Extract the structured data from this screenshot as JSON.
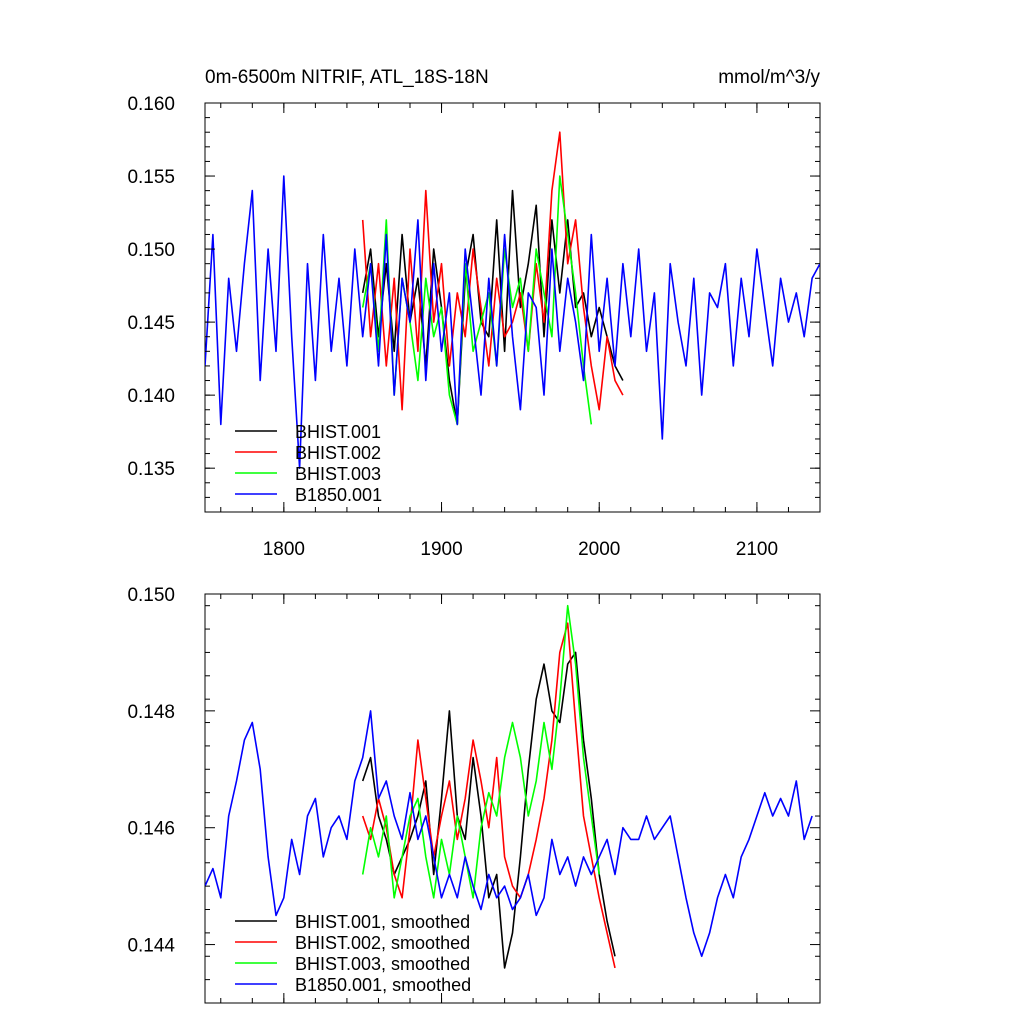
{
  "chart_data": [
    {
      "type": "line",
      "title_left": "0m-6500m NITRIF, ATL_18S-18N",
      "title_right": "mmol/m^3/y",
      "xlabel": "",
      "ylabel": "",
      "xlim": [
        1750,
        2140
      ],
      "ylim": [
        0.132,
        0.16
      ],
      "xticks": [
        1800,
        1900,
        2000,
        2100
      ],
      "xtick_labels": [
        "1800",
        "1900",
        "2000",
        "2100"
      ],
      "yticks": [
        0.135,
        0.14,
        0.145,
        0.15,
        0.155,
        0.16
      ],
      "ytick_labels": [
        "0.135",
        "0.140",
        "0.145",
        "0.150",
        "0.155",
        "0.160"
      ],
      "legend_position": "bottom-left",
      "series": [
        {
          "name": "BHIST.001",
          "color": "#000000",
          "x": [
            1850,
            1855,
            1860,
            1865,
            1870,
            1875,
            1880,
            1885,
            1890,
            1895,
            1900,
            1905,
            1910,
            1915,
            1920,
            1925,
            1930,
            1935,
            1940,
            1945,
            1950,
            1955,
            1960,
            1965,
            1970,
            1975,
            1980,
            1985,
            1990,
            1995,
            2000,
            2005,
            2010,
            2015
          ],
          "y": [
            0.147,
            0.15,
            0.144,
            0.149,
            0.143,
            0.151,
            0.145,
            0.148,
            0.142,
            0.15,
            0.146,
            0.141,
            0.138,
            0.148,
            0.151,
            0.145,
            0.144,
            0.152,
            0.143,
            0.154,
            0.146,
            0.149,
            0.153,
            0.144,
            0.152,
            0.147,
            0.152,
            0.146,
            0.147,
            0.144,
            0.146,
            0.144,
            0.142,
            0.141
          ]
        },
        {
          "name": "BHIST.002",
          "color": "#ff0000",
          "x": [
            1850,
            1855,
            1860,
            1865,
            1870,
            1875,
            1880,
            1885,
            1890,
            1895,
            1900,
            1905,
            1910,
            1915,
            1920,
            1925,
            1930,
            1935,
            1940,
            1945,
            1950,
            1955,
            1960,
            1965,
            1970,
            1975,
            1980,
            1985,
            1990,
            1995,
            2000,
            2005,
            2010,
            2015
          ],
          "y": [
            0.152,
            0.144,
            0.149,
            0.142,
            0.148,
            0.139,
            0.15,
            0.143,
            0.154,
            0.145,
            0.149,
            0.142,
            0.147,
            0.144,
            0.15,
            0.146,
            0.142,
            0.148,
            0.144,
            0.145,
            0.147,
            0.143,
            0.149,
            0.145,
            0.154,
            0.158,
            0.149,
            0.152,
            0.146,
            0.142,
            0.139,
            0.144,
            0.141,
            0.14
          ]
        },
        {
          "name": "BHIST.003",
          "color": "#00ff00",
          "x": [
            1850,
            1855,
            1860,
            1865,
            1870,
            1875,
            1880,
            1885,
            1890,
            1895,
            1900,
            1905,
            1910,
            1915,
            1920,
            1925,
            1930,
            1935,
            1940,
            1945,
            1950,
            1955,
            1960,
            1965,
            1970,
            1975,
            1980,
            1985,
            1990,
            1995
          ],
          "y": [
            0.146,
            0.149,
            0.143,
            0.152,
            0.14,
            0.148,
            0.145,
            0.141,
            0.148,
            0.144,
            0.146,
            0.14,
            0.138,
            0.149,
            0.143,
            0.145,
            0.147,
            0.142,
            0.15,
            0.146,
            0.148,
            0.143,
            0.15,
            0.147,
            0.144,
            0.155,
            0.151,
            0.147,
            0.142,
            0.138
          ]
        },
        {
          "name": "B1850.001",
          "color": "#0000ff",
          "x": [
            1750,
            1755,
            1760,
            1765,
            1770,
            1775,
            1780,
            1785,
            1790,
            1795,
            1800,
            1805,
            1810,
            1815,
            1820,
            1825,
            1830,
            1835,
            1840,
            1845,
            1850,
            1855,
            1860,
            1865,
            1870,
            1875,
            1880,
            1885,
            1890,
            1895,
            1900,
            1905,
            1910,
            1915,
            1920,
            1925,
            1930,
            1935,
            1940,
            1945,
            1950,
            1955,
            1960,
            1965,
            1970,
            1975,
            1980,
            1985,
            1990,
            1995,
            2000,
            2005,
            2010,
            2015,
            2020,
            2025,
            2030,
            2035,
            2040,
            2045,
            2050,
            2055,
            2060,
            2065,
            2070,
            2075,
            2080,
            2085,
            2090,
            2095,
            2100,
            2105,
            2110,
            2115,
            2120,
            2125,
            2130,
            2135,
            2140
          ],
          "y": [
            0.142,
            0.151,
            0.138,
            0.148,
            0.143,
            0.149,
            0.154,
            0.141,
            0.15,
            0.143,
            0.155,
            0.144,
            0.135,
            0.149,
            0.141,
            0.151,
            0.143,
            0.148,
            0.142,
            0.15,
            0.144,
            0.149,
            0.142,
            0.151,
            0.14,
            0.148,
            0.145,
            0.152,
            0.141,
            0.149,
            0.143,
            0.147,
            0.138,
            0.15,
            0.145,
            0.14,
            0.148,
            0.142,
            0.151,
            0.144,
            0.139,
            0.147,
            0.146,
            0.14,
            0.15,
            0.143,
            0.148,
            0.145,
            0.141,
            0.151,
            0.143,
            0.148,
            0.142,
            0.149,
            0.144,
            0.15,
            0.143,
            0.147,
            0.137,
            0.149,
            0.145,
            0.142,
            0.148,
            0.14,
            0.147,
            0.146,
            0.149,
            0.142,
            0.148,
            0.144,
            0.15,
            0.146,
            0.142,
            0.148,
            0.145,
            0.147,
            0.144,
            0.148,
            0.149
          ]
        }
      ]
    },
    {
      "type": "line",
      "title_left": "",
      "title_right": "",
      "xlabel": "",
      "ylabel": "",
      "xlim": [
        1750,
        2140
      ],
      "ylim": [
        0.143,
        0.15
      ],
      "xticks": [
        1800,
        1900,
        2000,
        2100
      ],
      "xtick_labels": [
        "",
        "",
        "",
        ""
      ],
      "yticks": [
        0.144,
        0.146,
        0.148,
        0.15
      ],
      "ytick_labels": [
        "0.144",
        "0.146",
        "0.148",
        "0.150"
      ],
      "legend_position": "bottom-left",
      "series": [
        {
          "name": "BHIST.001, smoothed",
          "color": "#000000",
          "x": [
            1850,
            1855,
            1860,
            1865,
            1870,
            1875,
            1880,
            1885,
            1890,
            1895,
            1900,
            1905,
            1910,
            1915,
            1920,
            1925,
            1930,
            1935,
            1940,
            1945,
            1950,
            1955,
            1960,
            1965,
            1970,
            1975,
            1980,
            1985,
            1990,
            1995,
            2000,
            2005,
            2010
          ],
          "y": [
            0.1468,
            0.1472,
            0.1462,
            0.1458,
            0.1452,
            0.1455,
            0.1458,
            0.1462,
            0.1468,
            0.1452,
            0.1465,
            0.148,
            0.1462,
            0.1458,
            0.1472,
            0.1462,
            0.1448,
            0.1452,
            0.1436,
            0.1442,
            0.1455,
            0.147,
            0.1482,
            0.1488,
            0.148,
            0.1478,
            0.1488,
            0.149,
            0.1475,
            0.1465,
            0.1452,
            0.1444,
            0.1438
          ]
        },
        {
          "name": "BHIST.002, smoothed",
          "color": "#ff0000",
          "x": [
            1850,
            1855,
            1860,
            1865,
            1870,
            1875,
            1880,
            1885,
            1890,
            1895,
            1900,
            1905,
            1910,
            1915,
            1920,
            1925,
            1930,
            1935,
            1940,
            1945,
            1950,
            1955,
            1960,
            1965,
            1970,
            1975,
            1980,
            1985,
            1990,
            1995,
            2000,
            2005,
            2010
          ],
          "y": [
            0.1462,
            0.1458,
            0.1465,
            0.146,
            0.1452,
            0.1448,
            0.146,
            0.1475,
            0.1465,
            0.1455,
            0.1462,
            0.1468,
            0.1458,
            0.1465,
            0.1475,
            0.1468,
            0.146,
            0.1472,
            0.1455,
            0.145,
            0.1448,
            0.1452,
            0.1458,
            0.1465,
            0.1475,
            0.149,
            0.1495,
            0.1478,
            0.1462,
            0.1455,
            0.1448,
            0.1442,
            0.1436
          ]
        },
        {
          "name": "BHIST.003, smoothed",
          "color": "#00ff00",
          "x": [
            1850,
            1855,
            1860,
            1865,
            1870,
            1875,
            1880,
            1885,
            1890,
            1895,
            1900,
            1905,
            1910,
            1915,
            1920,
            1925,
            1930,
            1935,
            1940,
            1945,
            1950,
            1955,
            1960,
            1965,
            1970,
            1975,
            1980,
            1985,
            1990,
            1995,
            2000
          ],
          "y": [
            0.1452,
            0.146,
            0.1455,
            0.1462,
            0.1448,
            0.1455,
            0.1462,
            0.1465,
            0.1455,
            0.1448,
            0.1458,
            0.1452,
            0.1462,
            0.1455,
            0.1448,
            0.146,
            0.1466,
            0.1462,
            0.1472,
            0.1478,
            0.1472,
            0.1462,
            0.1468,
            0.1478,
            0.147,
            0.1482,
            0.1498,
            0.1488,
            0.1472,
            0.1462,
            0.1452
          ]
        },
        {
          "name": "B1850.001, smoothed",
          "color": "#0000ff",
          "x": [
            1750,
            1755,
            1760,
            1765,
            1770,
            1775,
            1780,
            1785,
            1790,
            1795,
            1800,
            1805,
            1810,
            1815,
            1820,
            1825,
            1830,
            1835,
            1840,
            1845,
            1850,
            1855,
            1860,
            1865,
            1870,
            1875,
            1880,
            1885,
            1890,
            1895,
            1900,
            1905,
            1910,
            1915,
            1920,
            1925,
            1930,
            1935,
            1940,
            1945,
            1950,
            1955,
            1960,
            1965,
            1970,
            1975,
            1980,
            1985,
            1990,
            1995,
            2000,
            2005,
            2010,
            2015,
            2020,
            2025,
            2030,
            2035,
            2040,
            2045,
            2050,
            2055,
            2060,
            2065,
            2070,
            2075,
            2080,
            2085,
            2090,
            2095,
            2100,
            2105,
            2110,
            2115,
            2120,
            2125,
            2130,
            2135
          ],
          "y": [
            0.145,
            0.1453,
            0.1448,
            0.1462,
            0.1468,
            0.1475,
            0.1478,
            0.147,
            0.1455,
            0.1445,
            0.1448,
            0.1458,
            0.1452,
            0.1462,
            0.1465,
            0.1455,
            0.146,
            0.1462,
            0.1458,
            0.1468,
            0.1472,
            0.148,
            0.1465,
            0.1468,
            0.1462,
            0.1458,
            0.1466,
            0.1458,
            0.1462,
            0.1455,
            0.1448,
            0.1452,
            0.1448,
            0.1455,
            0.145,
            0.1446,
            0.1452,
            0.1448,
            0.145,
            0.1446,
            0.1448,
            0.1452,
            0.1445,
            0.1448,
            0.1458,
            0.1452,
            0.1455,
            0.145,
            0.1455,
            0.1452,
            0.1455,
            0.1458,
            0.1452,
            0.146,
            0.1458,
            0.1458,
            0.1462,
            0.1458,
            0.146,
            0.1462,
            0.1455,
            0.1448,
            0.1442,
            0.1438,
            0.1442,
            0.1448,
            0.1452,
            0.1448,
            0.1455,
            0.1458,
            0.1462,
            0.1466,
            0.1462,
            0.1465,
            0.1462,
            0.1468,
            0.1458,
            0.1462
          ]
        }
      ]
    }
  ]
}
